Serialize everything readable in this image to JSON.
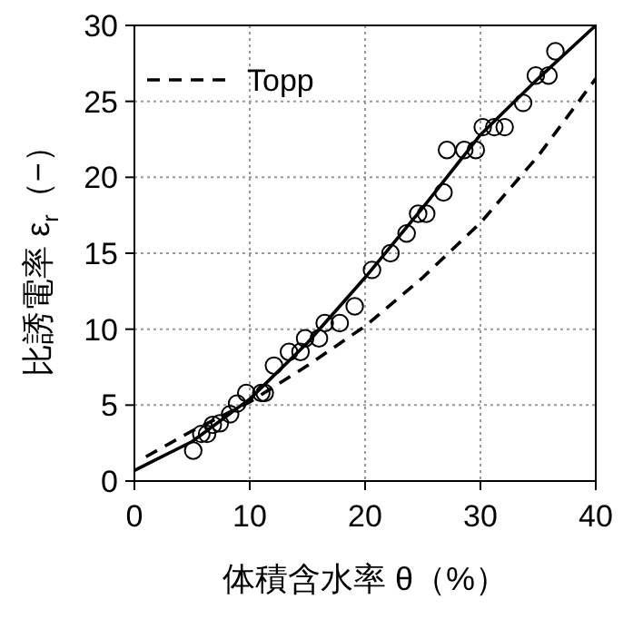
{
  "chart_data": {
    "type": "line",
    "xlabel": "体積含水率 θ（%）",
    "ylabel": "比誘電率 ε$_{r}$（−）",
    "xlim": [
      0,
      40
    ],
    "ylim": [
      0,
      30
    ],
    "xticks": [
      0,
      10,
      20,
      30,
      40
    ],
    "yticks": [
      0,
      5,
      10,
      15,
      20,
      25,
      30
    ],
    "grid": true,
    "legend": "top left",
    "series": [
      {
        "type": "scatter",
        "color": "#000000",
        "marker": "circle",
        "x": [
          5.1,
          5.8,
          6.3,
          6.8,
          7.4,
          8.3,
          8.9,
          9.7,
          11.0,
          11.3,
          12.1,
          13.4,
          14.4,
          14.8,
          16.0,
          16.5,
          17.8,
          19.1,
          20.6,
          22.2,
          23.6,
          24.6,
          25.3,
          26.8,
          27.1,
          28.6,
          29.6,
          30.2,
          31.2,
          32.1,
          33.7,
          34.8,
          35.9,
          36.5
        ],
        "values": [
          2.0,
          3.1,
          3.1,
          3.7,
          3.8,
          4.4,
          5.1,
          5.8,
          5.8,
          5.8,
          7.6,
          8.5,
          8.5,
          9.4,
          9.4,
          10.4,
          10.4,
          11.5,
          13.9,
          15.0,
          16.3,
          17.6,
          17.6,
          19.0,
          21.8,
          21.8,
          21.8,
          23.3,
          23.3,
          23.3,
          24.9,
          26.7,
          26.7,
          28.3
        ]
      },
      {
        "type": "line",
        "color": "#000000",
        "line_style": "solid",
        "marker": "none",
        "x": [
          0,
          5,
          10,
          15,
          20,
          25,
          30,
          35,
          40
        ],
        "values": [
          0.7,
          2.6,
          5.4,
          9.1,
          13.4,
          18.0,
          22.8,
          26.5,
          30.0
        ]
      },
      {
        "type": "line",
        "name": "Topp",
        "color": "#000000",
        "line_style": "dashed",
        "marker": "none",
        "x": [
          1,
          5,
          10,
          15,
          20,
          25,
          30,
          35,
          40
        ],
        "values": [
          1.6,
          3.3,
          5.2,
          7.6,
          10.2,
          13.4,
          17.0,
          21.4,
          26.5
        ]
      }
    ]
  }
}
